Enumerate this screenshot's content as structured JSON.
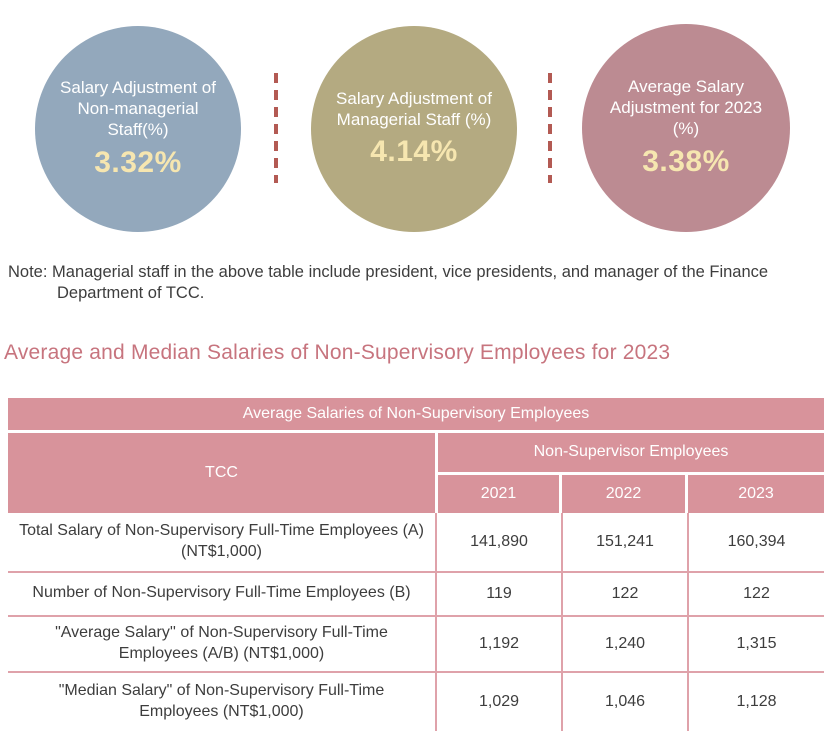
{
  "kpis": {
    "items": [
      {
        "label": "Salary Adjustment of Non-managerial Staff(%)",
        "value": "3.32%",
        "color": "#93a8bc"
      },
      {
        "label": "Salary Adjustment of Managerial Staff (%)",
        "value": "4.14%",
        "color": "#b4aa81"
      },
      {
        "label": "Average Salary Adjustment for 2023 (%)",
        "value": "3.38%",
        "color": "#bc8b92"
      }
    ],
    "value_color": "#f6e6b0",
    "separator_color": "#b35a53"
  },
  "note": {
    "prefix": "Note:",
    "text": "Managerial staff in the above table include president, vice presidents, and manager of the Finance Department of TCC."
  },
  "section": {
    "title": "Average and Median Salaries of Non-Supervisory Employees for 2023",
    "title_color": "#c7747e"
  },
  "table": {
    "banner": "Average Salaries of Non-Supervisory Employees",
    "row_header": "TCC",
    "group_header": "Non-Supervisor Employees",
    "year_headers": [
      "2021",
      "2022",
      "2023"
    ],
    "header_bg": "#d8939b",
    "rows": [
      {
        "label": "Total Salary of Non-Supervisory Full-Time Employees (A) (NT$1,000)",
        "values": [
          "141,890",
          "151,241",
          "160,394"
        ]
      },
      {
        "label": "Number of Non-Supervisory Full-Time Employees (B)",
        "values": [
          "119",
          "122",
          "122"
        ]
      },
      {
        "label": "\"Average Salary'' of Non-Supervisory Full-Time Employees (A/B) (NT$1,000)",
        "values": [
          "1,192",
          "1,240",
          "1,315"
        ]
      },
      {
        "label": "\"Median Salary\" of Non-Supervisory Full-Time Employees (NT$1,000)",
        "values": [
          "1,029",
          "1,046",
          "1,128"
        ]
      }
    ]
  }
}
